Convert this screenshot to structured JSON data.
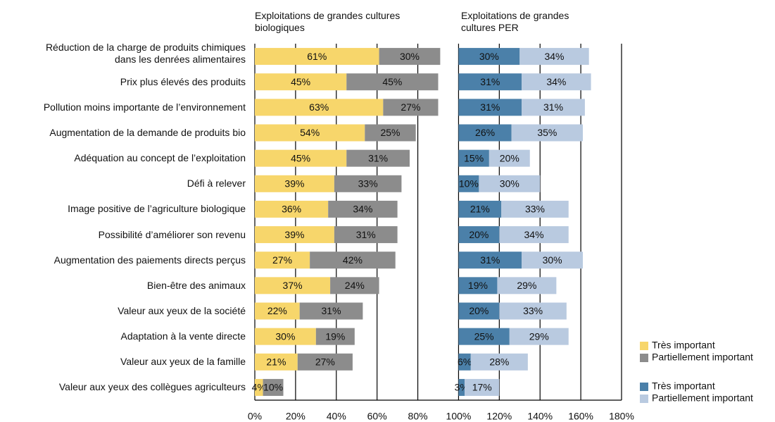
{
  "chart_data": [
    {
      "type": "bar",
      "title": "Exploitations de grandes cultures biologiques",
      "categories": [
        "Réduction de la charge de produits chimiques\ndans les denrées alimentaires",
        "Prix plus élevés des produits",
        "Pollution moins importante de l’environnement",
        "Augmentation de la demande de produits bio",
        "Adéquation au concept de l’exploitation",
        "Défi à relever",
        "Image positive de l’agriculture biologique",
        "Possibilité d’améliorer son revenu",
        "Augmentation des paiements directs perçus",
        "Bien-être des animaux",
        "Valeur aux yeux de la société",
        "Adaptation à la vente directe",
        "Valeur aux yeux de la famille",
        "Valeur aux yeux des collègues agriculteurs"
      ],
      "xlim": [
        0,
        180
      ],
      "xticks": [
        {
          "value": 0,
          "label": "0%"
        },
        {
          "value": 20,
          "label": "20%"
        },
        {
          "value": 40,
          "label": "40%"
        },
        {
          "value": 60,
          "label": "60%"
        },
        {
          "value": 80,
          "label": "80%"
        },
        {
          "value": 100,
          "label": "100%"
        },
        {
          "value": 120,
          "label": "120%"
        },
        {
          "value": 140,
          "label": "140%"
        },
        {
          "value": 160,
          "label": "160%"
        },
        {
          "value": 180,
          "label": "180%"
        }
      ],
      "grid": true,
      "series": [
        {
          "name": "Très important",
          "color": "#f7d66b",
          "values": [
            61,
            45,
            63,
            54,
            45,
            39,
            36,
            39,
            27,
            37,
            22,
            30,
            21,
            4
          ],
          "value_labels": [
            "61%",
            "45%",
            "63%",
            "54%",
            "45%",
            "39%",
            "36%",
            "39%",
            "27%",
            "37%",
            "22%",
            "30%",
            "21%",
            "4%"
          ]
        },
        {
          "name": "Partiellement important",
          "color": "#8c8c8c",
          "values": [
            30,
            45,
            27,
            25,
            31,
            33,
            34,
            31,
            42,
            24,
            31,
            19,
            27,
            10
          ],
          "value_labels": [
            "30%",
            "45%",
            "27%",
            "25%",
            "31%",
            "33%",
            "34%",
            "31%",
            "42%",
            "24%",
            "31%",
            "19%",
            "27%",
            "10%"
          ]
        }
      ]
    },
    {
      "type": "bar",
      "title": "Exploitations de grandes cultures PER",
      "series": [
        {
          "name": "Très important",
          "color": "#4b80a9",
          "values": [
            30,
            31,
            31,
            26,
            15,
            10,
            21,
            20,
            31,
            19,
            20,
            25,
            6,
            3
          ],
          "value_labels": [
            "30%",
            "31%",
            "31%",
            "26%",
            "15%",
            "10%",
            "21%",
            "20%",
            "31%",
            "19%",
            "20%",
            "25%",
            "6%",
            "3%"
          ]
        },
        {
          "name": "Partiellement important",
          "color": "#b9cae0",
          "values": [
            34,
            34,
            31,
            35,
            20,
            30,
            33,
            34,
            30,
            29,
            33,
            29,
            28,
            17
          ],
          "value_labels": [
            "34%",
            "34%",
            "31%",
            "35%",
            "20%",
            "30%",
            "33%",
            "34%",
            "30%",
            "29%",
            "33%",
            "29%",
            "28%",
            "17%"
          ]
        }
      ]
    }
  ]
}
